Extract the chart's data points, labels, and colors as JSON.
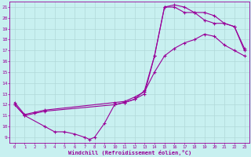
{
  "xlabel": "Windchill (Refroidissement éolien,°C)",
  "bg_color": "#c8f0f0",
  "line_color": "#990099",
  "grid_color": "#b0d8d8",
  "xlim": [
    -0.5,
    23.5
  ],
  "ylim": [
    8.5,
    21.5
  ],
  "yticks": [
    9,
    10,
    11,
    12,
    13,
    14,
    15,
    16,
    17,
    18,
    19,
    20,
    21
  ],
  "xticks": [
    0,
    1,
    2,
    3,
    4,
    5,
    6,
    7,
    8,
    9,
    10,
    11,
    12,
    13,
    14,
    15,
    16,
    17,
    18,
    19,
    20,
    21,
    22,
    23
  ],
  "curve1_x": [
    0,
    1,
    3,
    4,
    5,
    6,
    7,
    7.5,
    8,
    9,
    10,
    11,
    12,
    13,
    14,
    15,
    16,
    17,
    18,
    19,
    20,
    21,
    22,
    23
  ],
  "curve1_y": [
    12,
    11,
    10,
    9.5,
    9.5,
    9.3,
    9.0,
    8.8,
    9.0,
    10.3,
    12.0,
    12.2,
    12.5,
    13.3,
    16.5,
    21.0,
    21.2,
    21.0,
    20.5,
    20.5,
    20.2,
    19.5,
    19.2,
    17.2
  ],
  "curve2_x": [
    0,
    1,
    2,
    3,
    10,
    11,
    12,
    13,
    14,
    15,
    16,
    17,
    18,
    19,
    20,
    21,
    22,
    23
  ],
  "curve2_y": [
    12.2,
    11.1,
    11.3,
    11.5,
    12.2,
    12.3,
    12.7,
    13.2,
    15.0,
    16.5,
    17.2,
    17.7,
    18.0,
    18.5,
    18.3,
    17.5,
    17.0,
    16.5
  ],
  "curve3_x": [
    0,
    1,
    2,
    3,
    10,
    11,
    12,
    13,
    14,
    15,
    16,
    17,
    18,
    19,
    20,
    21,
    22,
    23
  ],
  "curve3_y": [
    12.0,
    11.0,
    11.2,
    11.4,
    12.0,
    12.2,
    12.5,
    13.0,
    16.5,
    21.0,
    21.0,
    20.5,
    20.5,
    19.8,
    19.5,
    19.5,
    19.2,
    17.0
  ]
}
